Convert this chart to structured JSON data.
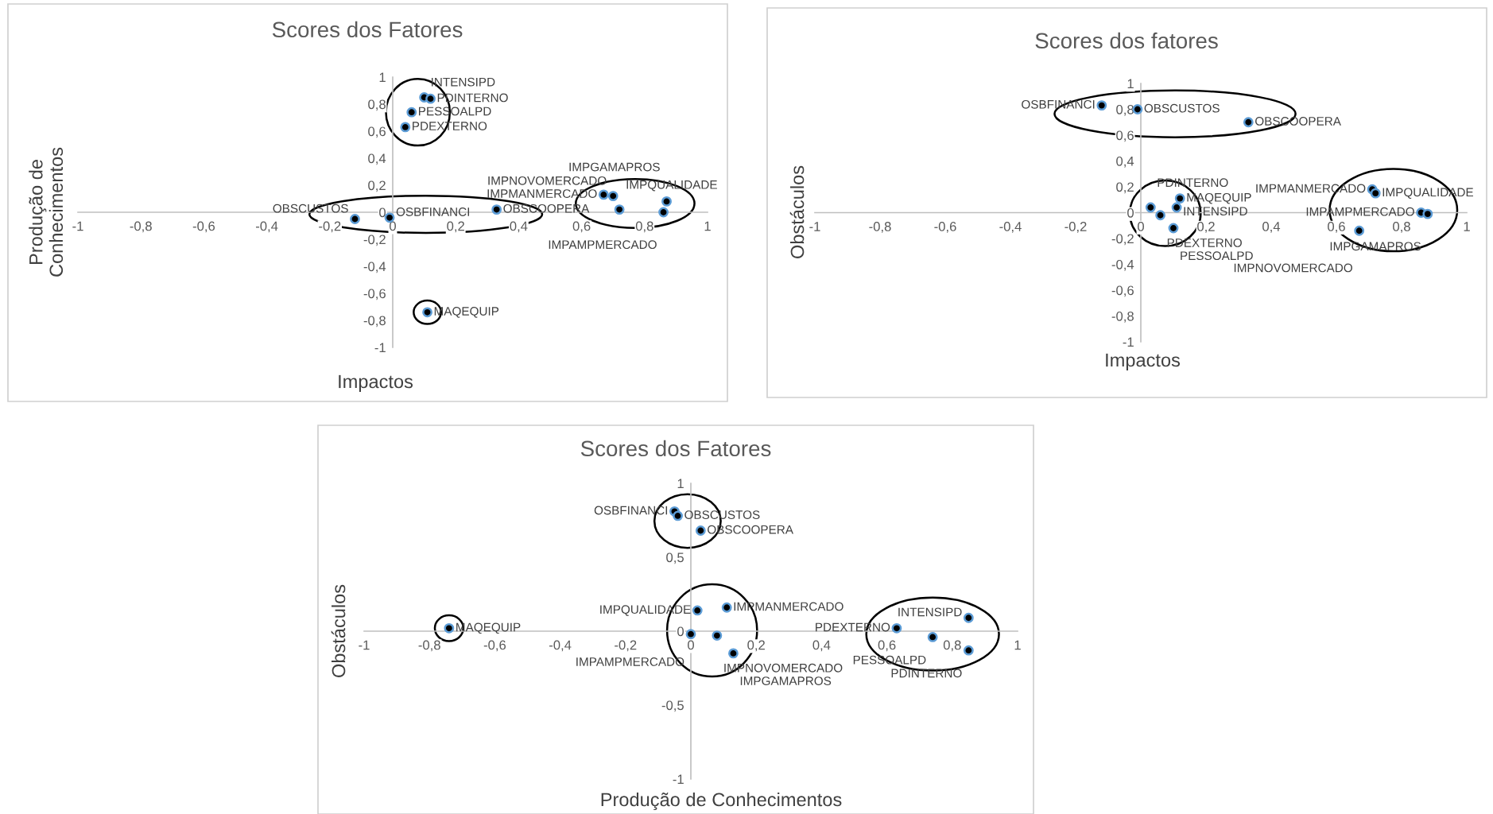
{
  "chart_data": [
    {
      "type": "scatter",
      "title": "Scores dos Fatores",
      "xlabel": "Impactos",
      "ylabel": "Produção de\nConhecimentos",
      "xlim": [
        -1,
        1
      ],
      "ylim": [
        -1,
        1
      ],
      "xticks": [
        -1,
        {
          "value": -0.8,
          "label": "-0,8"
        },
        {
          "value": -0.6,
          "label": "-0,6"
        },
        {
          "value": -0.4,
          "label": "-0,4"
        },
        {
          "value": -0.2,
          "label": "-0,2"
        },
        0,
        {
          "value": 0.2,
          "label": "0,2"
        },
        {
          "value": 0.4,
          "label": "0,4"
        },
        {
          "value": 0.6,
          "label": "0,6"
        },
        {
          "value": 0.8,
          "label": "0,8"
        },
        1
      ],
      "yticks": [
        -1,
        {
          "value": -0.8,
          "label": "-0,8"
        },
        {
          "value": -0.6,
          "label": "-0,6"
        },
        {
          "value": -0.4,
          "label": "-0,4"
        },
        {
          "value": -0.2,
          "label": "-0,2"
        },
        0,
        {
          "value": 0.2,
          "label": "0,2"
        },
        {
          "value": 0.4,
          "label": "0,4"
        },
        {
          "value": 0.6,
          "label": "0,6"
        },
        {
          "value": 0.8,
          "label": "0,8"
        },
        1
      ],
      "grid": false,
      "marker": "circle",
      "series": [
        {
          "color": "#000000",
          "x": [
            0.1,
            0.12,
            0.06,
            0.04
          ],
          "values": [
            0.85,
            0.84,
            0.74,
            0.63
          ]
        },
        {
          "color": "#000000",
          "x": [
            -0.12,
            -0.01,
            0.33
          ],
          "values": [
            -0.05,
            -0.04,
            0.02
          ]
        },
        {
          "color": "#000000",
          "x": [
            0.11
          ],
          "values": [
            -0.74
          ]
        },
        {
          "color": "#000000",
          "x": [
            0.67,
            0.7,
            0.72,
            0.86,
            0.87
          ],
          "values": [
            0.13,
            0.12,
            0.02,
            0.0,
            0.08
          ]
        }
      ],
      "annotations": [
        {
          "text": "INTENSIPD",
          "x": 0.1,
          "y": 0.85
        },
        {
          "text": "PDINTERNO",
          "x": 0.12,
          "y": 0.84
        },
        {
          "text": "PESSOALPD",
          "x": 0.06,
          "y": 0.74
        },
        {
          "text": "PDEXTERNO",
          "x": 0.04,
          "y": 0.63
        },
        {
          "text": "OBSCUSTOS",
          "x": -0.12,
          "y": -0.05
        },
        {
          "text": "OSBFINANCI",
          "x": -0.01,
          "y": -0.04
        },
        {
          "text": "OBSCOOPERA",
          "x": 0.33,
          "y": 0.02
        },
        {
          "text": "MAQEQUIP",
          "x": 0.11,
          "y": -0.74
        },
        {
          "text": "IMPMANMERCADO",
          "x": 0.67,
          "y": 0.13
        },
        {
          "text": "IMPNOVOMERCADO",
          "x": 0.7,
          "y": 0.12
        },
        {
          "text": "IMPQUALIDADE",
          "x": 0.72,
          "y": 0.02
        },
        {
          "text": "IMPAMPMERCADO",
          "x": 0.86,
          "y": 0.0
        },
        {
          "text": "IMPGAMAPROS",
          "x": 0.87,
          "y": 0.08
        }
      ]
    },
    {
      "type": "scatter",
      "title": "Scores dos fatores",
      "xlabel": "Impactos",
      "ylabel": "Obstáculos",
      "xlim": [
        -1,
        1
      ],
      "ylim": [
        -1,
        1
      ],
      "xticks": [
        -1,
        {
          "value": -0.8,
          "label": "-0,8"
        },
        {
          "value": -0.6,
          "label": "-0,6"
        },
        {
          "value": -0.4,
          "label": "-0,4"
        },
        {
          "value": -0.2,
          "label": "-0,2"
        },
        0,
        {
          "value": 0.2,
          "label": "0,2"
        },
        {
          "value": 0.4,
          "label": "0,4"
        },
        {
          "value": 0.6,
          "label": "0,6"
        },
        {
          "value": 0.8,
          "label": "0,8"
        },
        1
      ],
      "yticks": [
        -1,
        {
          "value": -0.8,
          "label": "-0,8"
        },
        {
          "value": -0.6,
          "label": "-0,6"
        },
        {
          "value": -0.4,
          "label": "-0,4"
        },
        {
          "value": -0.2,
          "label": "-0,2"
        },
        0,
        {
          "value": 0.2,
          "label": "0,2"
        },
        {
          "value": 0.4,
          "label": "0,4"
        },
        {
          "value": 0.6,
          "label": "0,6"
        },
        {
          "value": 0.8,
          "label": "0,8"
        },
        1
      ],
      "grid": false,
      "marker": "circle",
      "series": [
        {
          "color": "#000000",
          "x": [
            -0.12,
            -0.01,
            0.33
          ],
          "values": [
            0.83,
            0.8,
            0.7
          ]
        },
        {
          "color": "#000000",
          "x": [
            0.03,
            0.06,
            0.11,
            0.12,
            0.1
          ],
          "values": [
            0.04,
            -0.02,
            0.04,
            0.11,
            -0.12
          ]
        },
        {
          "color": "#000000",
          "x": [
            0.71,
            0.72,
            0.86,
            0.88,
            0.67
          ],
          "values": [
            0.18,
            0.15,
            0.0,
            -0.01,
            -0.14
          ]
        }
      ],
      "annotations": [
        {
          "text": "OSBFINANCI",
          "x": -0.12,
          "y": 0.83
        },
        {
          "text": "OBSCUSTOS",
          "x": -0.01,
          "y": 0.8
        },
        {
          "text": "OBSCOOPERA",
          "x": 0.33,
          "y": 0.7
        },
        {
          "text": "PDINTERNO",
          "x": 0.03,
          "y": 0.04
        },
        {
          "text": "PDEXTERNO",
          "x": 0.06,
          "y": -0.02
        },
        {
          "text": "INTENSIPD",
          "x": 0.11,
          "y": 0.04
        },
        {
          "text": "MAQEQUIP",
          "x": 0.12,
          "y": 0.11
        },
        {
          "text": "PESSOALPD",
          "x": 0.1,
          "y": -0.12
        },
        {
          "text": "IMPMANMERCADO",
          "x": 0.71,
          "y": 0.18
        },
        {
          "text": "IMPQUALIDADE",
          "x": 0.72,
          "y": 0.15
        },
        {
          "text": "IMPAMPMERCADO",
          "x": 0.86,
          "y": 0.0
        },
        {
          "text": "IMPGAMAPROS",
          "x": 0.88,
          "y": -0.01
        },
        {
          "text": "IMPNOVOMERCADO",
          "x": 0.67,
          "y": -0.14
        }
      ]
    },
    {
      "type": "scatter",
      "title": "Scores dos Fatores",
      "xlabel": "Produção de Conhecimentos",
      "ylabel": "Obstáculos",
      "xlim": [
        -1,
        1
      ],
      "ylim": [
        -1,
        1
      ],
      "xticks": [
        -1,
        {
          "value": -0.8,
          "label": "-0,8"
        },
        {
          "value": -0.6,
          "label": "-0,6"
        },
        {
          "value": -0.4,
          "label": "-0,4"
        },
        {
          "value": -0.2,
          "label": "-0,2"
        },
        0,
        {
          "value": 0.2,
          "label": "0,2"
        },
        {
          "value": 0.4,
          "label": "0,4"
        },
        {
          "value": 0.6,
          "label": "0,6"
        },
        {
          "value": 0.8,
          "label": "0,8"
        },
        1
      ],
      "yticks": [
        -1,
        {
          "value": -0.5,
          "label": "-0,5"
        },
        0,
        {
          "value": 0.5,
          "label": "0,5"
        },
        1
      ],
      "grid": false,
      "marker": "circle",
      "series": [
        {
          "color": "#000000",
          "x": [
            -0.05,
            -0.04,
            0.03
          ],
          "values": [
            0.81,
            0.78,
            0.68
          ]
        },
        {
          "color": "#000000",
          "x": [
            0.11,
            0.02,
            0.0,
            0.08,
            0.13
          ],
          "values": [
            0.16,
            0.14,
            -0.02,
            -0.03,
            -0.15
          ]
        },
        {
          "color": "#000000",
          "x": [
            -0.74
          ],
          "values": [
            0.02
          ]
        },
        {
          "color": "#000000",
          "x": [
            0.63,
            0.74,
            0.85,
            0.85
          ],
          "values": [
            0.02,
            -0.04,
            0.09,
            -0.13
          ]
        }
      ],
      "annotations": [
        {
          "text": "OSBFINANCI",
          "x": -0.05,
          "y": 0.81
        },
        {
          "text": "OBSCUSTOS",
          "x": -0.04,
          "y": 0.78
        },
        {
          "text": "OBSCOOPERA",
          "x": 0.03,
          "y": 0.68
        },
        {
          "text": "IMPMANMERCADO",
          "x": 0.11,
          "y": 0.16
        },
        {
          "text": "IMPQUALIDADE",
          "x": 0.02,
          "y": 0.14
        },
        {
          "text": "IMPAMPMERCADO",
          "x": 0.0,
          "y": -0.02
        },
        {
          "text": "IMPNOVOMERCADO",
          "x": 0.08,
          "y": -0.03
        },
        {
          "text": "IMPGAMAPROS",
          "x": 0.13,
          "y": -0.15
        },
        {
          "text": "MAQEQUIP",
          "x": -0.74,
          "y": 0.02
        },
        {
          "text": "PDEXTERNO",
          "x": 0.63,
          "y": 0.02
        },
        {
          "text": "PESSOALPD",
          "x": 0.74,
          "y": -0.04
        },
        {
          "text": "INTENSIPD",
          "x": 0.85,
          "y": 0.09
        },
        {
          "text": "PDINTERNO",
          "x": 0.85,
          "y": -0.13
        }
      ]
    }
  ]
}
